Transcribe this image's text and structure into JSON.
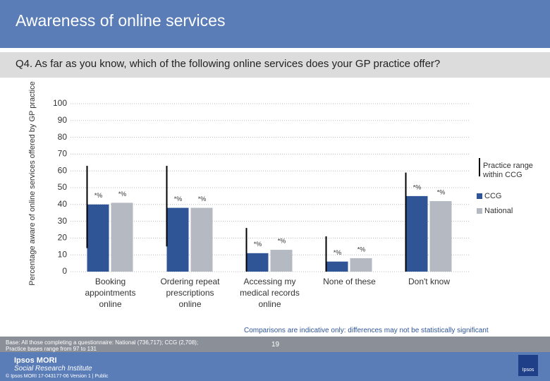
{
  "header": {
    "title": "Awareness of online services"
  },
  "question": "Q4. As far as you know, which of the following online services does your GP practice offer?",
  "chart_data": {
    "type": "bar",
    "y_label": "Percentage aware of online services offered by GP practice",
    "categories": [
      "Booking appointments online",
      "Ordering repeat prescriptions online",
      "Accessing my medical records online",
      "None of these",
      "Don't know"
    ],
    "series": [
      {
        "name": "CCG",
        "color": "#2f5597",
        "values": [
          40,
          38,
          11,
          6,
          45
        ],
        "value_labels": [
          "*%",
          "*%",
          "*%",
          "*%",
          "*%"
        ]
      },
      {
        "name": "National",
        "color": "#b4b9c2",
        "values": [
          41,
          38,
          13,
          8,
          42
        ],
        "value_labels": [
          "*%",
          "*%",
          "*%",
          "*%",
          "*%"
        ]
      }
    ],
    "range": {
      "name": "Practice range within CCG",
      "color": "#000000",
      "values": [
        [
          14,
          63
        ],
        [
          15,
          63
        ],
        [
          0,
          26
        ],
        [
          0,
          21
        ],
        [
          0,
          59
        ]
      ]
    },
    "ylim": [
      0,
      100
    ],
    "yticks": [
      0,
      10,
      20,
      30,
      40,
      50,
      60,
      70,
      80,
      90,
      100
    ],
    "grid": true,
    "legend": "right"
  },
  "note": "Comparisons are indicative only: differences may not be statistically significant",
  "footer": {
    "base": [
      "Base: All those completing a questionnaire: National (736,717); CCG (2,708);",
      "Practice bases range from 97 to 131"
    ],
    "brand": [
      "Ipsos MORI",
      "Social Research Institute"
    ],
    "page": "19",
    "credits": "© Ipsos MORI   17-043177-06 Version 1 | Public",
    "logo": "Ipsos"
  }
}
